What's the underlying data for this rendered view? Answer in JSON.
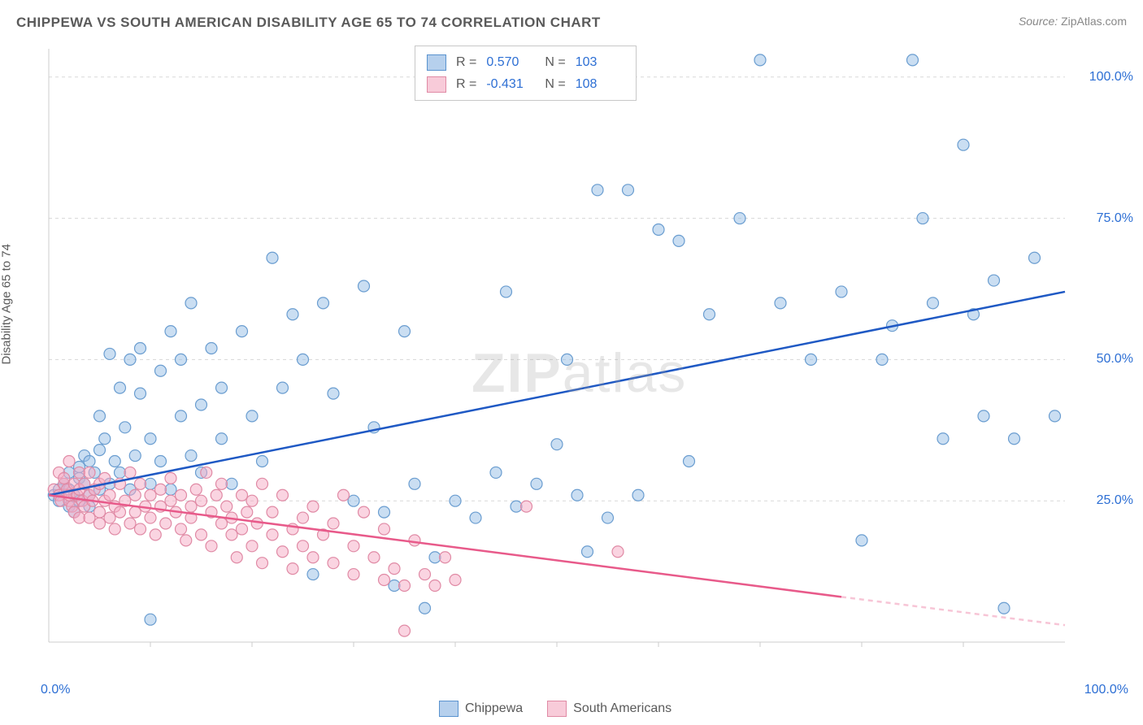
{
  "title": "CHIPPEWA VS SOUTH AMERICAN DISABILITY AGE 65 TO 74 CORRELATION CHART",
  "source_label": "Source:",
  "source_value": "ZipAtlas.com",
  "y_axis_label": "Disability Age 65 to 74",
  "watermark_bold": "ZIP",
  "watermark_light": "atlas",
  "chart": {
    "type": "scatter",
    "xlim": [
      0,
      100
    ],
    "ylim": [
      0,
      105
    ],
    "y_ticks": [
      25,
      50,
      75,
      100
    ],
    "y_tick_labels": [
      "25.0%",
      "50.0%",
      "75.0%",
      "100.0%"
    ],
    "x_tick_labels": [
      "0.0%",
      "100.0%"
    ],
    "x_minor_tick_step": 10,
    "background_color": "#ffffff",
    "grid_color": "#d8d8d8",
    "axis_color": "#cccccc",
    "marker_radius": 7,
    "marker_stroke_width": 1.2,
    "trend_line_width": 2.5,
    "series": [
      {
        "name": "Chippewa",
        "color_fill": "rgba(150,190,230,0.5)",
        "color_stroke": "#6a9dd0",
        "trend_color": "#1f59c4",
        "R": "0.570",
        "N": "103",
        "trend": {
          "x1": 0,
          "y1": 26,
          "x2": 100,
          "y2": 62
        },
        "points": [
          [
            0.5,
            26
          ],
          [
            1,
            25
          ],
          [
            1,
            27
          ],
          [
            1.5,
            28
          ],
          [
            2,
            30
          ],
          [
            2,
            27
          ],
          [
            2,
            24
          ],
          [
            2.5,
            26
          ],
          [
            2.5,
            23
          ],
          [
            3,
            31
          ],
          [
            3,
            25
          ],
          [
            3,
            29
          ],
          [
            3.5,
            33
          ],
          [
            3.5,
            28
          ],
          [
            4,
            26
          ],
          [
            4,
            32
          ],
          [
            4,
            24
          ],
          [
            4.5,
            30
          ],
          [
            5,
            34
          ],
          [
            5,
            27
          ],
          [
            5,
            40
          ],
          [
            5.5,
            36
          ],
          [
            6,
            28
          ],
          [
            6,
            51
          ],
          [
            6.5,
            32
          ],
          [
            7,
            45
          ],
          [
            7,
            30
          ],
          [
            7.5,
            38
          ],
          [
            8,
            50
          ],
          [
            8,
            27
          ],
          [
            8.5,
            33
          ],
          [
            9,
            44
          ],
          [
            9,
            52
          ],
          [
            10,
            28
          ],
          [
            10,
            36
          ],
          [
            10,
            4
          ],
          [
            11,
            48
          ],
          [
            11,
            32
          ],
          [
            12,
            55
          ],
          [
            12,
            27
          ],
          [
            13,
            40
          ],
          [
            13,
            50
          ],
          [
            14,
            33
          ],
          [
            14,
            60
          ],
          [
            15,
            42
          ],
          [
            15,
            30
          ],
          [
            16,
            52
          ],
          [
            17,
            36
          ],
          [
            17,
            45
          ],
          [
            18,
            28
          ],
          [
            19,
            55
          ],
          [
            20,
            40
          ],
          [
            21,
            32
          ],
          [
            22,
            68
          ],
          [
            23,
            45
          ],
          [
            24,
            58
          ],
          [
            25,
            50
          ],
          [
            26,
            12
          ],
          [
            27,
            60
          ],
          [
            28,
            44
          ],
          [
            30,
            25
          ],
          [
            31,
            63
          ],
          [
            32,
            38
          ],
          [
            33,
            23
          ],
          [
            34,
            10
          ],
          [
            35,
            55
          ],
          [
            36,
            28
          ],
          [
            37,
            6
          ],
          [
            38,
            15
          ],
          [
            40,
            25
          ],
          [
            42,
            22
          ],
          [
            44,
            30
          ],
          [
            45,
            62
          ],
          [
            46,
            24
          ],
          [
            48,
            28
          ],
          [
            50,
            35
          ],
          [
            51,
            50
          ],
          [
            52,
            26
          ],
          [
            53,
            16
          ],
          [
            54,
            80
          ],
          [
            55,
            22
          ],
          [
            57,
            80
          ],
          [
            58,
            26
          ],
          [
            60,
            73
          ],
          [
            62,
            71
          ],
          [
            63,
            32
          ],
          [
            65,
            58
          ],
          [
            68,
            75
          ],
          [
            70,
            103
          ],
          [
            72,
            60
          ],
          [
            75,
            50
          ],
          [
            78,
            62
          ],
          [
            80,
            18
          ],
          [
            82,
            50
          ],
          [
            83,
            56
          ],
          [
            85,
            103
          ],
          [
            86,
            75
          ],
          [
            87,
            60
          ],
          [
            88,
            36
          ],
          [
            90,
            88
          ],
          [
            91,
            58
          ],
          [
            92,
            40
          ],
          [
            93,
            64
          ],
          [
            94,
            6
          ],
          [
            95,
            36
          ],
          [
            97,
            68
          ],
          [
            99,
            40
          ]
        ]
      },
      {
        "name": "South Americans",
        "color_fill": "rgba(245,170,195,0.5)",
        "color_stroke": "#e08aa5",
        "trend_color": "#e85a8a",
        "trend_dash_color": "rgba(232,90,138,0.35)",
        "R": "-0.431",
        "N": "108",
        "trend": {
          "x1": 0,
          "y1": 26,
          "x2": 78,
          "y2": 8,
          "x2_dash": 100,
          "y2_dash": 3
        },
        "points": [
          [
            0.5,
            27
          ],
          [
            1,
            30
          ],
          [
            1,
            26
          ],
          [
            1.2,
            25
          ],
          [
            1.5,
            28
          ],
          [
            1.5,
            29
          ],
          [
            1.8,
            27
          ],
          [
            2,
            32
          ],
          [
            2,
            25
          ],
          [
            2,
            26
          ],
          [
            2.3,
            24
          ],
          [
            2.5,
            28
          ],
          [
            2.5,
            23
          ],
          [
            2.8,
            26
          ],
          [
            3,
            30
          ],
          [
            3,
            27
          ],
          [
            3,
            22
          ],
          [
            3.3,
            25
          ],
          [
            3.5,
            28
          ],
          [
            3.5,
            24
          ],
          [
            4,
            26
          ],
          [
            4,
            30
          ],
          [
            4,
            22
          ],
          [
            4.3,
            25
          ],
          [
            4.5,
            27
          ],
          [
            5,
            23
          ],
          [
            5,
            28
          ],
          [
            5,
            21
          ],
          [
            5.5,
            25
          ],
          [
            5.5,
            29
          ],
          [
            6,
            22
          ],
          [
            6,
            26
          ],
          [
            6.5,
            24
          ],
          [
            6.5,
            20
          ],
          [
            7,
            28
          ],
          [
            7,
            23
          ],
          [
            7.5,
            25
          ],
          [
            8,
            21
          ],
          [
            8,
            30
          ],
          [
            8.5,
            26
          ],
          [
            8.5,
            23
          ],
          [
            9,
            28
          ],
          [
            9,
            20
          ],
          [
            9.5,
            24
          ],
          [
            10,
            22
          ],
          [
            10,
            26
          ],
          [
            10.5,
            19
          ],
          [
            11,
            27
          ],
          [
            11,
            24
          ],
          [
            11.5,
            21
          ],
          [
            12,
            25
          ],
          [
            12,
            29
          ],
          [
            12.5,
            23
          ],
          [
            13,
            20
          ],
          [
            13,
            26
          ],
          [
            13.5,
            18
          ],
          [
            14,
            24
          ],
          [
            14,
            22
          ],
          [
            14.5,
            27
          ],
          [
            15,
            19
          ],
          [
            15,
            25
          ],
          [
            15.5,
            30
          ],
          [
            16,
            23
          ],
          [
            16,
            17
          ],
          [
            16.5,
            26
          ],
          [
            17,
            21
          ],
          [
            17,
            28
          ],
          [
            17.5,
            24
          ],
          [
            18,
            19
          ],
          [
            18,
            22
          ],
          [
            18.5,
            15
          ],
          [
            19,
            26
          ],
          [
            19,
            20
          ],
          [
            19.5,
            23
          ],
          [
            20,
            17
          ],
          [
            20,
            25
          ],
          [
            20.5,
            21
          ],
          [
            21,
            14
          ],
          [
            21,
            28
          ],
          [
            22,
            19
          ],
          [
            22,
            23
          ],
          [
            23,
            16
          ],
          [
            23,
            26
          ],
          [
            24,
            20
          ],
          [
            24,
            13
          ],
          [
            25,
            22
          ],
          [
            25,
            17
          ],
          [
            26,
            15
          ],
          [
            26,
            24
          ],
          [
            27,
            19
          ],
          [
            28,
            14
          ],
          [
            28,
            21
          ],
          [
            29,
            26
          ],
          [
            30,
            12
          ],
          [
            30,
            17
          ],
          [
            31,
            23
          ],
          [
            32,
            15
          ],
          [
            33,
            11
          ],
          [
            33,
            20
          ],
          [
            34,
            13
          ],
          [
            35,
            10
          ],
          [
            35,
            2
          ],
          [
            36,
            18
          ],
          [
            37,
            12
          ],
          [
            38,
            10
          ],
          [
            39,
            15
          ],
          [
            40,
            11
          ],
          [
            47,
            24
          ],
          [
            56,
            16
          ]
        ]
      }
    ]
  },
  "legend_bottom": {
    "items": [
      "Chippewa",
      "South Americans"
    ]
  }
}
